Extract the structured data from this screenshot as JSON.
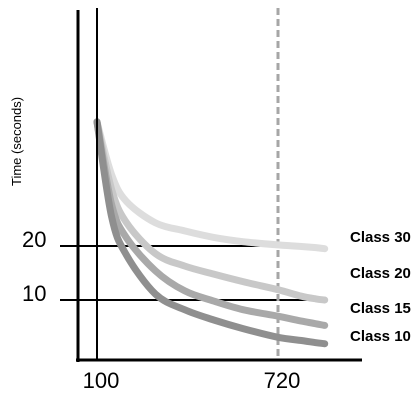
{
  "chart_data": {
    "type": "line",
    "title": "",
    "xlabel": "",
    "ylabel": "Time (seconds)",
    "x_ticks": [
      "100",
      "720"
    ],
    "y_ticks": [
      "20",
      "10"
    ],
    "xlim": [
      70,
      890
    ],
    "ylim": [
      -2,
      45
    ],
    "reference_line_x": 720,
    "series": [
      {
        "name": "Class 30",
        "color": "#dddddd",
        "x": [
          100,
          150,
          200,
          300,
          400,
          500,
          600,
          720,
          800,
          850,
          880
        ],
        "y": [
          43,
          33.2,
          28.3,
          24.3,
          22.8,
          21.6,
          20.8,
          20.2,
          19.9,
          19.7,
          19.5
        ]
      },
      {
        "name": "Class 20",
        "color": "#c8c8c8",
        "x": [
          100,
          150,
          200,
          300,
          400,
          500,
          600,
          720,
          800,
          850,
          880
        ],
        "y": [
          43,
          30.5,
          24.4,
          18.6,
          16.3,
          14.8,
          13.4,
          11.9,
          10.7,
          10.2,
          10.0
        ]
      },
      {
        "name": "Class 15",
        "color": "#a9a9a9",
        "x": [
          100,
          150,
          200,
          300,
          400,
          500,
          600,
          720,
          800,
          850,
          880
        ],
        "y": [
          43,
          27.7,
          21.6,
          15.4,
          11.7,
          9.8,
          8.2,
          7.0,
          6.1,
          5.6,
          5.3
        ]
      },
      {
        "name": "Class 10",
        "color": "#8f8f8f",
        "x": [
          100,
          150,
          200,
          300,
          400,
          500,
          600,
          720,
          800,
          850,
          880
        ],
        "y": [
          43,
          25.4,
          18.4,
          11.1,
          8.2,
          6.3,
          4.7,
          3.1,
          2.5,
          2.1,
          1.9
        ]
      }
    ]
  }
}
